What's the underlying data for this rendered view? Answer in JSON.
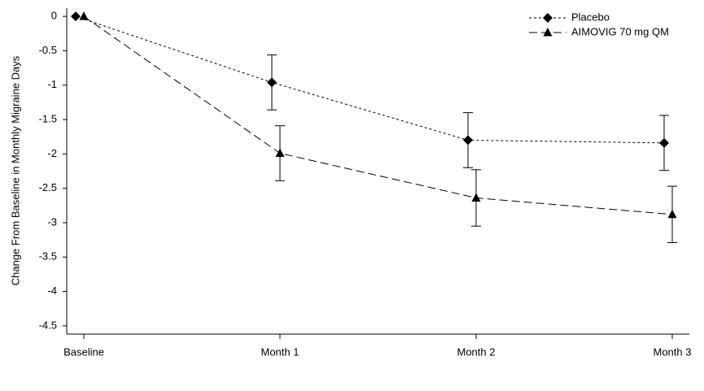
{
  "chart_data": {
    "type": "line",
    "y_label": "Change From Baseline in Monthly Migraine Days",
    "categories": [
      "Baseline",
      "Month 1",
      "Month 2",
      "Month 3"
    ],
    "series": [
      {
        "name": "Placebo",
        "color": "#000000",
        "marker": "diamond",
        "dash": "3,3",
        "values": [
          0,
          -0.96,
          -1.8,
          -1.84
        ],
        "errors": [
          null,
          0.4,
          0.4,
          0.4
        ]
      },
      {
        "name": "AIMOVIG 70 mg QM",
        "color": "#000000",
        "marker": "triangle",
        "dash": "10,5",
        "values": [
          0,
          -1.99,
          -2.64,
          -2.88
        ],
        "errors": [
          null,
          0.4,
          0.41,
          0.41
        ]
      }
    ],
    "ylim": [
      -4.62,
      0.12
    ],
    "yticks": [
      0,
      -0.5,
      -1,
      -1.5,
      -2,
      -2.5,
      -3,
      -3.5,
      -4,
      -4.5
    ],
    "legend": "top-right"
  }
}
